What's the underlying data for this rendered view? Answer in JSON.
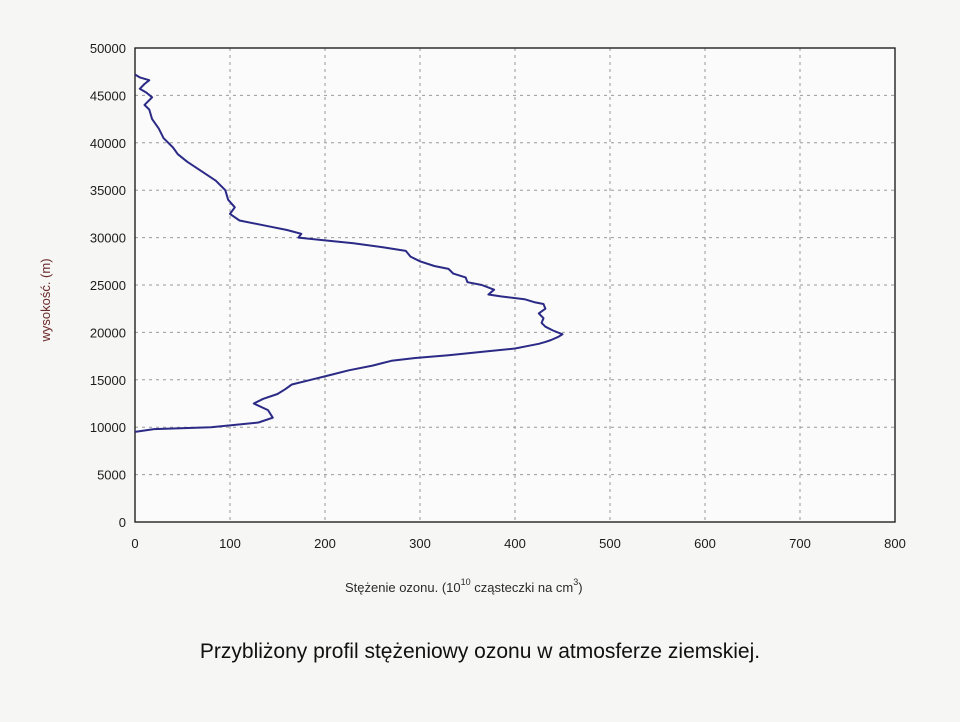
{
  "caption": "Przybliżony profil stężeniowy ozonu w atmosferze ziemskiej.",
  "chart_data": {
    "type": "line",
    "title": "",
    "xlabel_main": "Stężenie ozonu. (10",
    "xlabel_exp": "10",
    "xlabel_rest": " cząsteczki na cm",
    "xlabel_exp2": "3",
    "xlabel_close": ")",
    "ylabel": "wysokość. (m)",
    "xlim": [
      0,
      800
    ],
    "ylim": [
      0,
      50000
    ],
    "x_ticks": [
      "0",
      "100",
      "200",
      "300",
      "400",
      "500",
      "600",
      "700",
      "800"
    ],
    "y_ticks": [
      "0",
      "5000",
      "10000",
      "15000",
      "20000",
      "25000",
      "30000",
      "35000",
      "40000",
      "45000",
      "50000"
    ],
    "grid": true,
    "line_color": "#2b2a86",
    "series": [
      {
        "x": [
          0,
          20,
          80,
          130,
          145,
          140,
          125,
          135,
          150,
          158,
          165,
          185,
          205,
          225,
          250,
          270,
          295,
          330,
          370,
          400,
          415,
          425,
          432,
          438,
          445,
          450,
          440,
          432,
          428,
          430,
          425,
          432,
          430,
          420,
          410,
          385,
          372,
          378,
          365,
          350,
          348,
          335,
          330,
          315,
          300,
          290,
          285,
          260,
          230,
          200,
          172,
          175,
          160,
          140,
          110,
          100,
          105,
          98,
          95,
          85,
          70,
          55,
          45,
          40,
          30,
          25,
          18,
          15,
          10,
          18,
          12,
          5,
          10,
          15,
          5,
          0
        ],
        "y": [
          9500,
          9800,
          10000,
          10500,
          11000,
          11800,
          12500,
          13000,
          13500,
          14000,
          14500,
          15000,
          15500,
          16000,
          16500,
          17000,
          17300,
          17600,
          18000,
          18300,
          18600,
          18800,
          19000,
          19200,
          19500,
          19800,
          20200,
          20600,
          21000,
          21500,
          22000,
          22500,
          23000,
          23200,
          23500,
          23800,
          24000,
          24500,
          25000,
          25300,
          25800,
          26200,
          26700,
          27000,
          27500,
          28000,
          28600,
          29000,
          29400,
          29700,
          30000,
          30400,
          30800,
          31200,
          31800,
          32500,
          33200,
          34000,
          35000,
          36000,
          37000,
          38000,
          38800,
          39500,
          40500,
          41500,
          42500,
          43500,
          44000,
          44800,
          45300,
          45700,
          46200,
          46600,
          46900,
          47200
        ]
      }
    ]
  }
}
